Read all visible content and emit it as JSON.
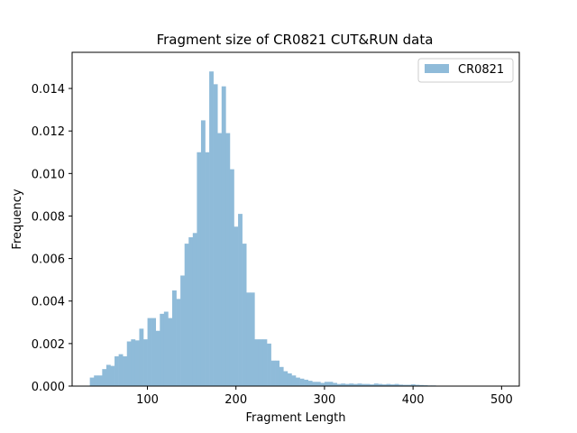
{
  "chart_data": {
    "type": "bar",
    "title": "Fragment size of CR0821 CUT&RUN data",
    "xlabel": "Fragment Length",
    "ylabel": "Frequency",
    "xlim": [
      15,
      520
    ],
    "ylim": [
      0,
      0.0157
    ],
    "xticks": [
      100,
      200,
      300,
      400,
      500
    ],
    "xtick_labels": [
      "100",
      "200",
      "300",
      "400",
      "500"
    ],
    "yticks": [
      0,
      0.002,
      0.004,
      0.006,
      0.008,
      0.01,
      0.012,
      0.014
    ],
    "ytick_labels": [
      "0.000",
      "0.002",
      "0.004",
      "0.006",
      "0.008",
      "0.010",
      "0.012",
      "0.014"
    ],
    "grid": false,
    "legend_position": "top-right",
    "series": [
      {
        "name": "CR0821",
        "color": "#8fbbd9",
        "bin_start": 35,
        "bin_width": 4.65,
        "values": [
          0.0004,
          0.0005,
          0.0005,
          0.0008,
          0.001,
          0.00095,
          0.0014,
          0.0015,
          0.0014,
          0.0021,
          0.0022,
          0.00215,
          0.0027,
          0.0022,
          0.0032,
          0.0032,
          0.0026,
          0.0034,
          0.0035,
          0.0032,
          0.0045,
          0.0041,
          0.0052,
          0.0067,
          0.007,
          0.0072,
          0.011,
          0.0125,
          0.011,
          0.0148,
          0.0142,
          0.0119,
          0.0141,
          0.0119,
          0.0102,
          0.0075,
          0.0081,
          0.0067,
          0.0044,
          0.0044,
          0.0022,
          0.0022,
          0.0022,
          0.002,
          0.0012,
          0.0012,
          0.0009,
          0.0007,
          0.0006,
          0.0005,
          0.0004,
          0.00035,
          0.0003,
          0.00025,
          0.0002,
          0.0002,
          0.00015,
          0.0002,
          0.0002,
          0.00015,
          0.0001,
          0.00012,
          0.0001,
          0.00012,
          0.0001,
          0.00012,
          0.0001,
          0.0001,
          8e-05,
          0.00012,
          0.0001,
          8e-05,
          0.0001,
          8e-05,
          0.0001,
          7e-05,
          6e-05,
          6e-05,
          8e-05,
          6e-05,
          5e-05,
          4e-05,
          3e-05,
          3e-05,
          2e-05,
          2e-05,
          2e-05,
          2e-05,
          1e-05,
          1e-05,
          1e-05,
          1e-05,
          1e-05,
          1e-05,
          1e-05,
          1e-05,
          1e-05,
          1e-05,
          1e-05,
          1e-05
        ]
      }
    ]
  }
}
